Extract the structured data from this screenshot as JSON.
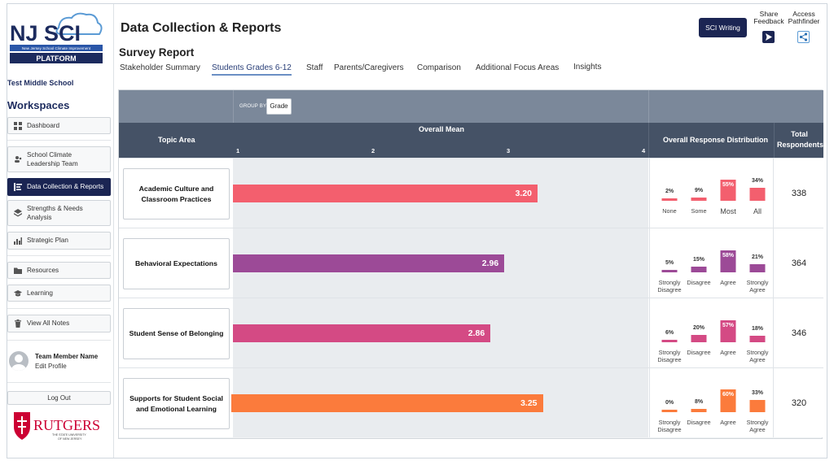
{
  "logo": {
    "line1": "NJ SCI",
    "tagline": "New Jersey School Climate Improvement",
    "platform": "PLATFORM"
  },
  "school": "Test Middle School",
  "workspaces_title": "Workspaces",
  "nav": {
    "dashboard": "Dashboard",
    "sclt_line1": "School Climate",
    "sclt_line2": "Leadership Team",
    "data_collection": "Data Collection & Reports",
    "strengths_line1": "Strengths & Needs",
    "strengths_line2": "Analysis",
    "strategic": "Strategic Plan",
    "resources": "Resources",
    "learning": "Learning",
    "notes": "View All Notes"
  },
  "user": {
    "name": "Team Member Name",
    "edit": "Edit Profile"
  },
  "logout": "Log Out",
  "rutgers": {
    "name": "RUTGERS",
    "line1": "THE STATE UNIVERSITY",
    "line2": "OF NEW JERSEY"
  },
  "page_title": "Data Collection & Reports",
  "subtitle": "Survey Report",
  "tabs": [
    "Stakeholder Summary",
    "Students Grades 6-12",
    "Staff",
    "Parents/Caregivers",
    "Comparison",
    "Additional Focus Areas",
    "Insights"
  ],
  "active_tab": 1,
  "top_actions": {
    "sci_writing": "SCI Writing",
    "share_line1": "Share",
    "share_line2": "Feedback",
    "access_line1": "Access",
    "access_line2": "Pathfinder"
  },
  "report": {
    "group_by_label": "GROUP BY",
    "group_by_value": "Grade",
    "header": {
      "topic": "Topic Area",
      "mean": "Overall Mean",
      "ticks": [
        "1",
        "2",
        "3",
        "4"
      ],
      "distribution": "Overall Response Distribution",
      "respondents_line1": "Total",
      "respondents_line2": "Respondents"
    }
  },
  "chart_data": {
    "type": "bar",
    "title": "Overall Mean",
    "xlim": [
      1,
      4
    ],
    "categories": [
      "Academic Culture and Classroom Practices",
      "Behavioral Expectations",
      "Student Sense of Belonging",
      "Supports for Student Social and Emotional Learning"
    ],
    "values": [
      3.2,
      2.96,
      2.86,
      3.25
    ],
    "value_labels": [
      "3.20",
      "2.96",
      "2.86",
      "3.25"
    ],
    "colors": [
      "#f35f6e",
      "#9c4a97",
      "#d44a84",
      "#fb7b3c"
    ],
    "respondents": [
      338,
      364,
      346,
      320
    ],
    "distribution": [
      {
        "labels": [
          "None",
          "Some",
          "Most",
          "All"
        ],
        "values": [
          2,
          9,
          55,
          34
        ],
        "pct_labels": [
          "2%",
          "9%",
          "55%",
          "34%"
        ]
      },
      {
        "labels": [
          "Strongly Disagree",
          "Disagree",
          "Agree",
          "Strongly Agree"
        ],
        "values": [
          5,
          15,
          58,
          21
        ],
        "pct_labels": [
          "5%",
          "15%",
          "58%",
          "21%"
        ]
      },
      {
        "labels": [
          "Strongly Disagree",
          "Disagree",
          "Agree",
          "Strongly Agree"
        ],
        "values": [
          6,
          20,
          57,
          18
        ],
        "pct_labels": [
          "6%",
          "20%",
          "57%",
          "18%"
        ]
      },
      {
        "labels": [
          "Strongly Disagree",
          "Disagree",
          "Agree",
          "Strongly Agree"
        ],
        "values": [
          0,
          8,
          60,
          33
        ],
        "pct_labels": [
          "0%",
          "8%",
          "60%",
          "33%"
        ]
      }
    ]
  }
}
